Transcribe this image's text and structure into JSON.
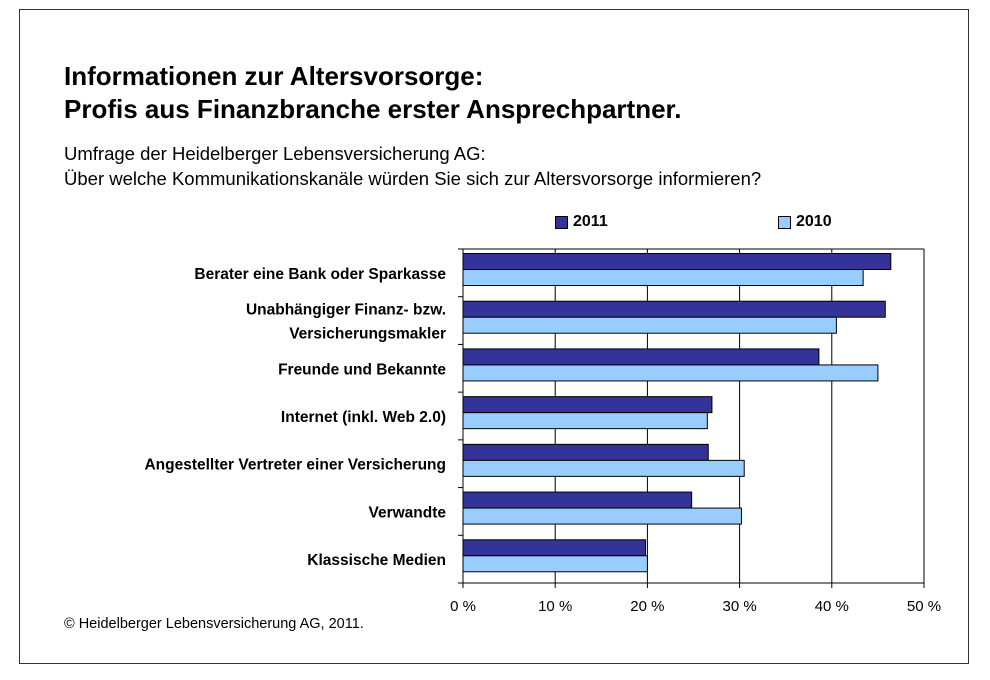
{
  "header": {
    "title_line1": "Informationen zur Altersvorsorge:",
    "title_line2": "Profis aus Finanzbranche erster Ansprechpartner.",
    "subtitle_line1": "Umfrage der Heidelberger Lebensversicherung AG:",
    "subtitle_line2": "Über welche Kommunikationskanäle würden Sie sich zur Altersvorsorge informieren?"
  },
  "footer": {
    "copyright": "© Heidelberger Lebensversicherung AG, 2011."
  },
  "colors": {
    "series_2011": "#333399",
    "series_2010": "#99ccff",
    "grid": "#000000"
  },
  "chart_data": {
    "type": "bar",
    "orientation": "horizontal",
    "categories": [
      [
        "Berater eine Bank oder Sparkasse"
      ],
      [
        "Unabhängiger Finanz- bzw.",
        "Versicherungsmakler"
      ],
      [
        "Freunde und Bekannte"
      ],
      [
        "Internet (inkl. Web 2.0)"
      ],
      [
        "Angestellter Vertreter einer Versicherung"
      ],
      [
        "Verwandte"
      ],
      [
        "Klassische Medien"
      ]
    ],
    "series": [
      {
        "name": "2011",
        "color": "#333399",
        "values": [
          46.4,
          45.8,
          38.6,
          27.0,
          26.6,
          24.8,
          19.8
        ]
      },
      {
        "name": "2010",
        "color": "#99ccff",
        "values": [
          43.4,
          40.5,
          45.0,
          26.5,
          30.5,
          30.2,
          20.0
        ]
      }
    ],
    "xlim": [
      0,
      50
    ],
    "xticks": [
      "0 %",
      "10 %",
      "20 %",
      "30 %",
      "40 %",
      "50 %"
    ],
    "grid": true,
    "legend_position": "top"
  }
}
